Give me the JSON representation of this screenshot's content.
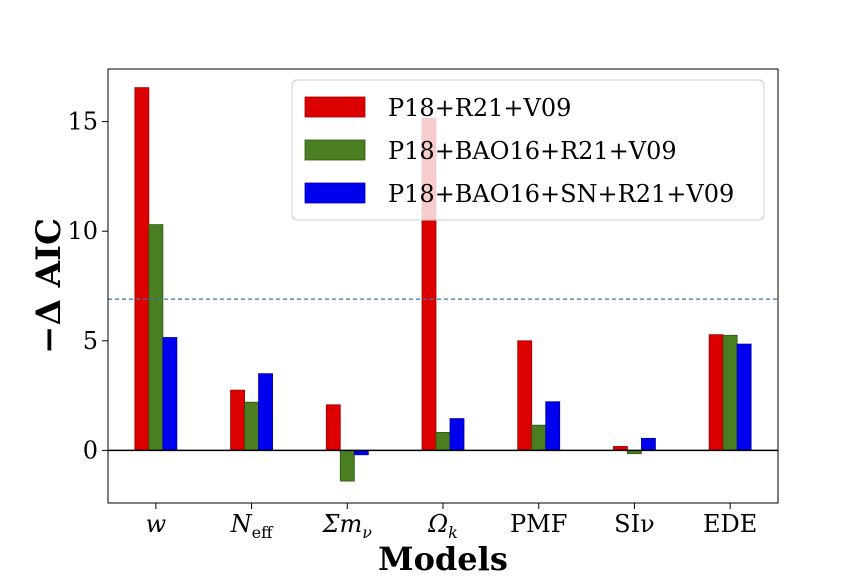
{
  "chart_data": {
    "type": "bar",
    "title": "",
    "xlabel": "Models",
    "ylabel": "−Δ AIC",
    "ylim": [
      -2.4,
      17.4
    ],
    "yticks": [
      0,
      5,
      10,
      15
    ],
    "categories": [
      {
        "label": "w",
        "sub": "",
        "italic": true
      },
      {
        "label": "N",
        "sub": "eff",
        "italic": true
      },
      {
        "label": "Σm",
        "sub": "ν",
        "italic": true
      },
      {
        "label": "Ω",
        "sub": "k",
        "italic": true
      },
      {
        "label": "PMF",
        "sub": "",
        "italic": false
      },
      {
        "label": "SIν",
        "sub": "",
        "italic": false
      },
      {
        "label": "EDE",
        "sub": "",
        "italic": false
      }
    ],
    "series": [
      {
        "name": "P18+R21+V09",
        "color": "#dd0000",
        "edge": "#9e0000",
        "values": [
          16.55,
          2.75,
          2.08,
          15.15,
          5.0,
          0.18,
          5.28
        ]
      },
      {
        "name": "P18+BAO16+R21+V09",
        "color": "#4a7e20",
        "edge": "#2f5412",
        "values": [
          10.3,
          2.2,
          -1.4,
          0.82,
          1.15,
          -0.15,
          5.25
        ]
      },
      {
        "name": "P18+BAO16+SN+R21+V09",
        "color": "#0000ee",
        "edge": "#0000aa",
        "values": [
          5.15,
          3.5,
          -0.2,
          1.45,
          2.22,
          0.55,
          4.85
        ]
      }
    ],
    "reference_line": {
      "value": 6.9,
      "color": "#3b76a8",
      "style": "dashed"
    },
    "zero_line": true,
    "legend": {
      "position": "top-right"
    },
    "grid": false
  }
}
